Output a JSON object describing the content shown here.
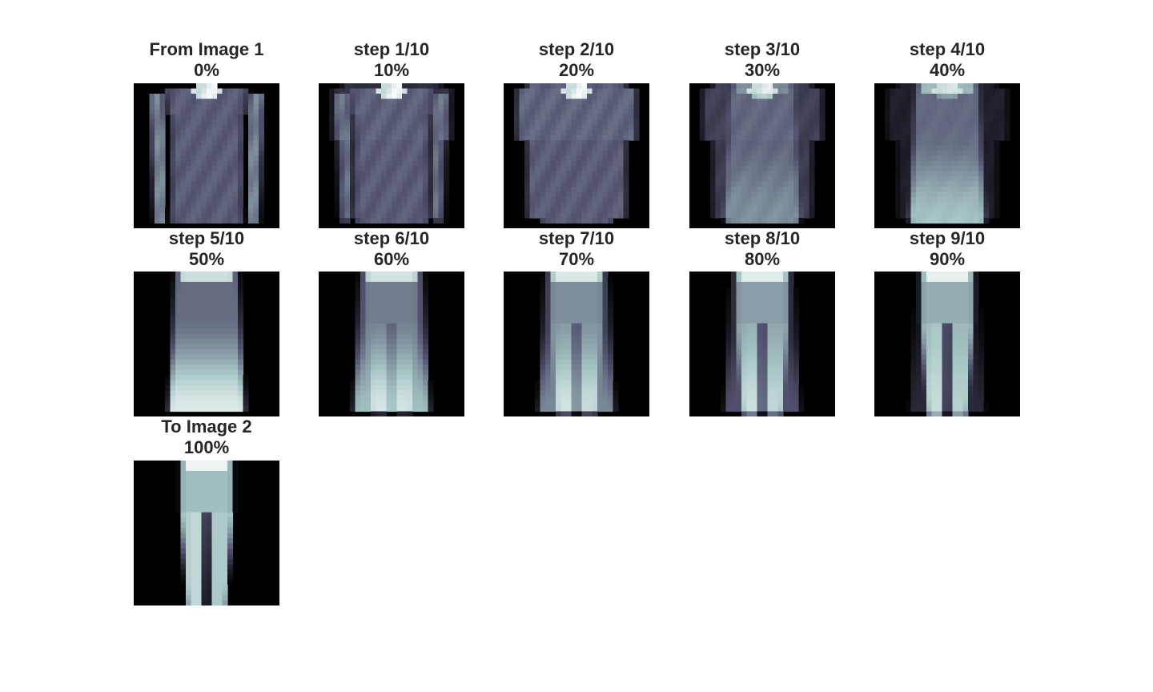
{
  "figure": {
    "colormap": "bone",
    "background": "#ffffff",
    "title_color": "#262626",
    "panels": [
      {
        "label": "From Image 1",
        "percent": "0%",
        "t": 0.0
      },
      {
        "label": "step 1/10",
        "percent": "10%",
        "t": 0.1
      },
      {
        "label": "step 2/10",
        "percent": "20%",
        "t": 0.2
      },
      {
        "label": "step 3/10",
        "percent": "30%",
        "t": 0.3
      },
      {
        "label": "step 4/10",
        "percent": "40%",
        "t": 0.4
      },
      {
        "label": "step 5/10",
        "percent": "50%",
        "t": 0.5
      },
      {
        "label": "step 6/10",
        "percent": "60%",
        "t": 0.6
      },
      {
        "label": "step 7/10",
        "percent": "70%",
        "t": 0.7
      },
      {
        "label": "step 8/10",
        "percent": "80%",
        "t": 0.8
      },
      {
        "label": "step 9/10",
        "percent": "90%",
        "t": 0.9
      },
      {
        "label": "To Image 2",
        "percent": "100%",
        "t": 1.0
      }
    ]
  }
}
